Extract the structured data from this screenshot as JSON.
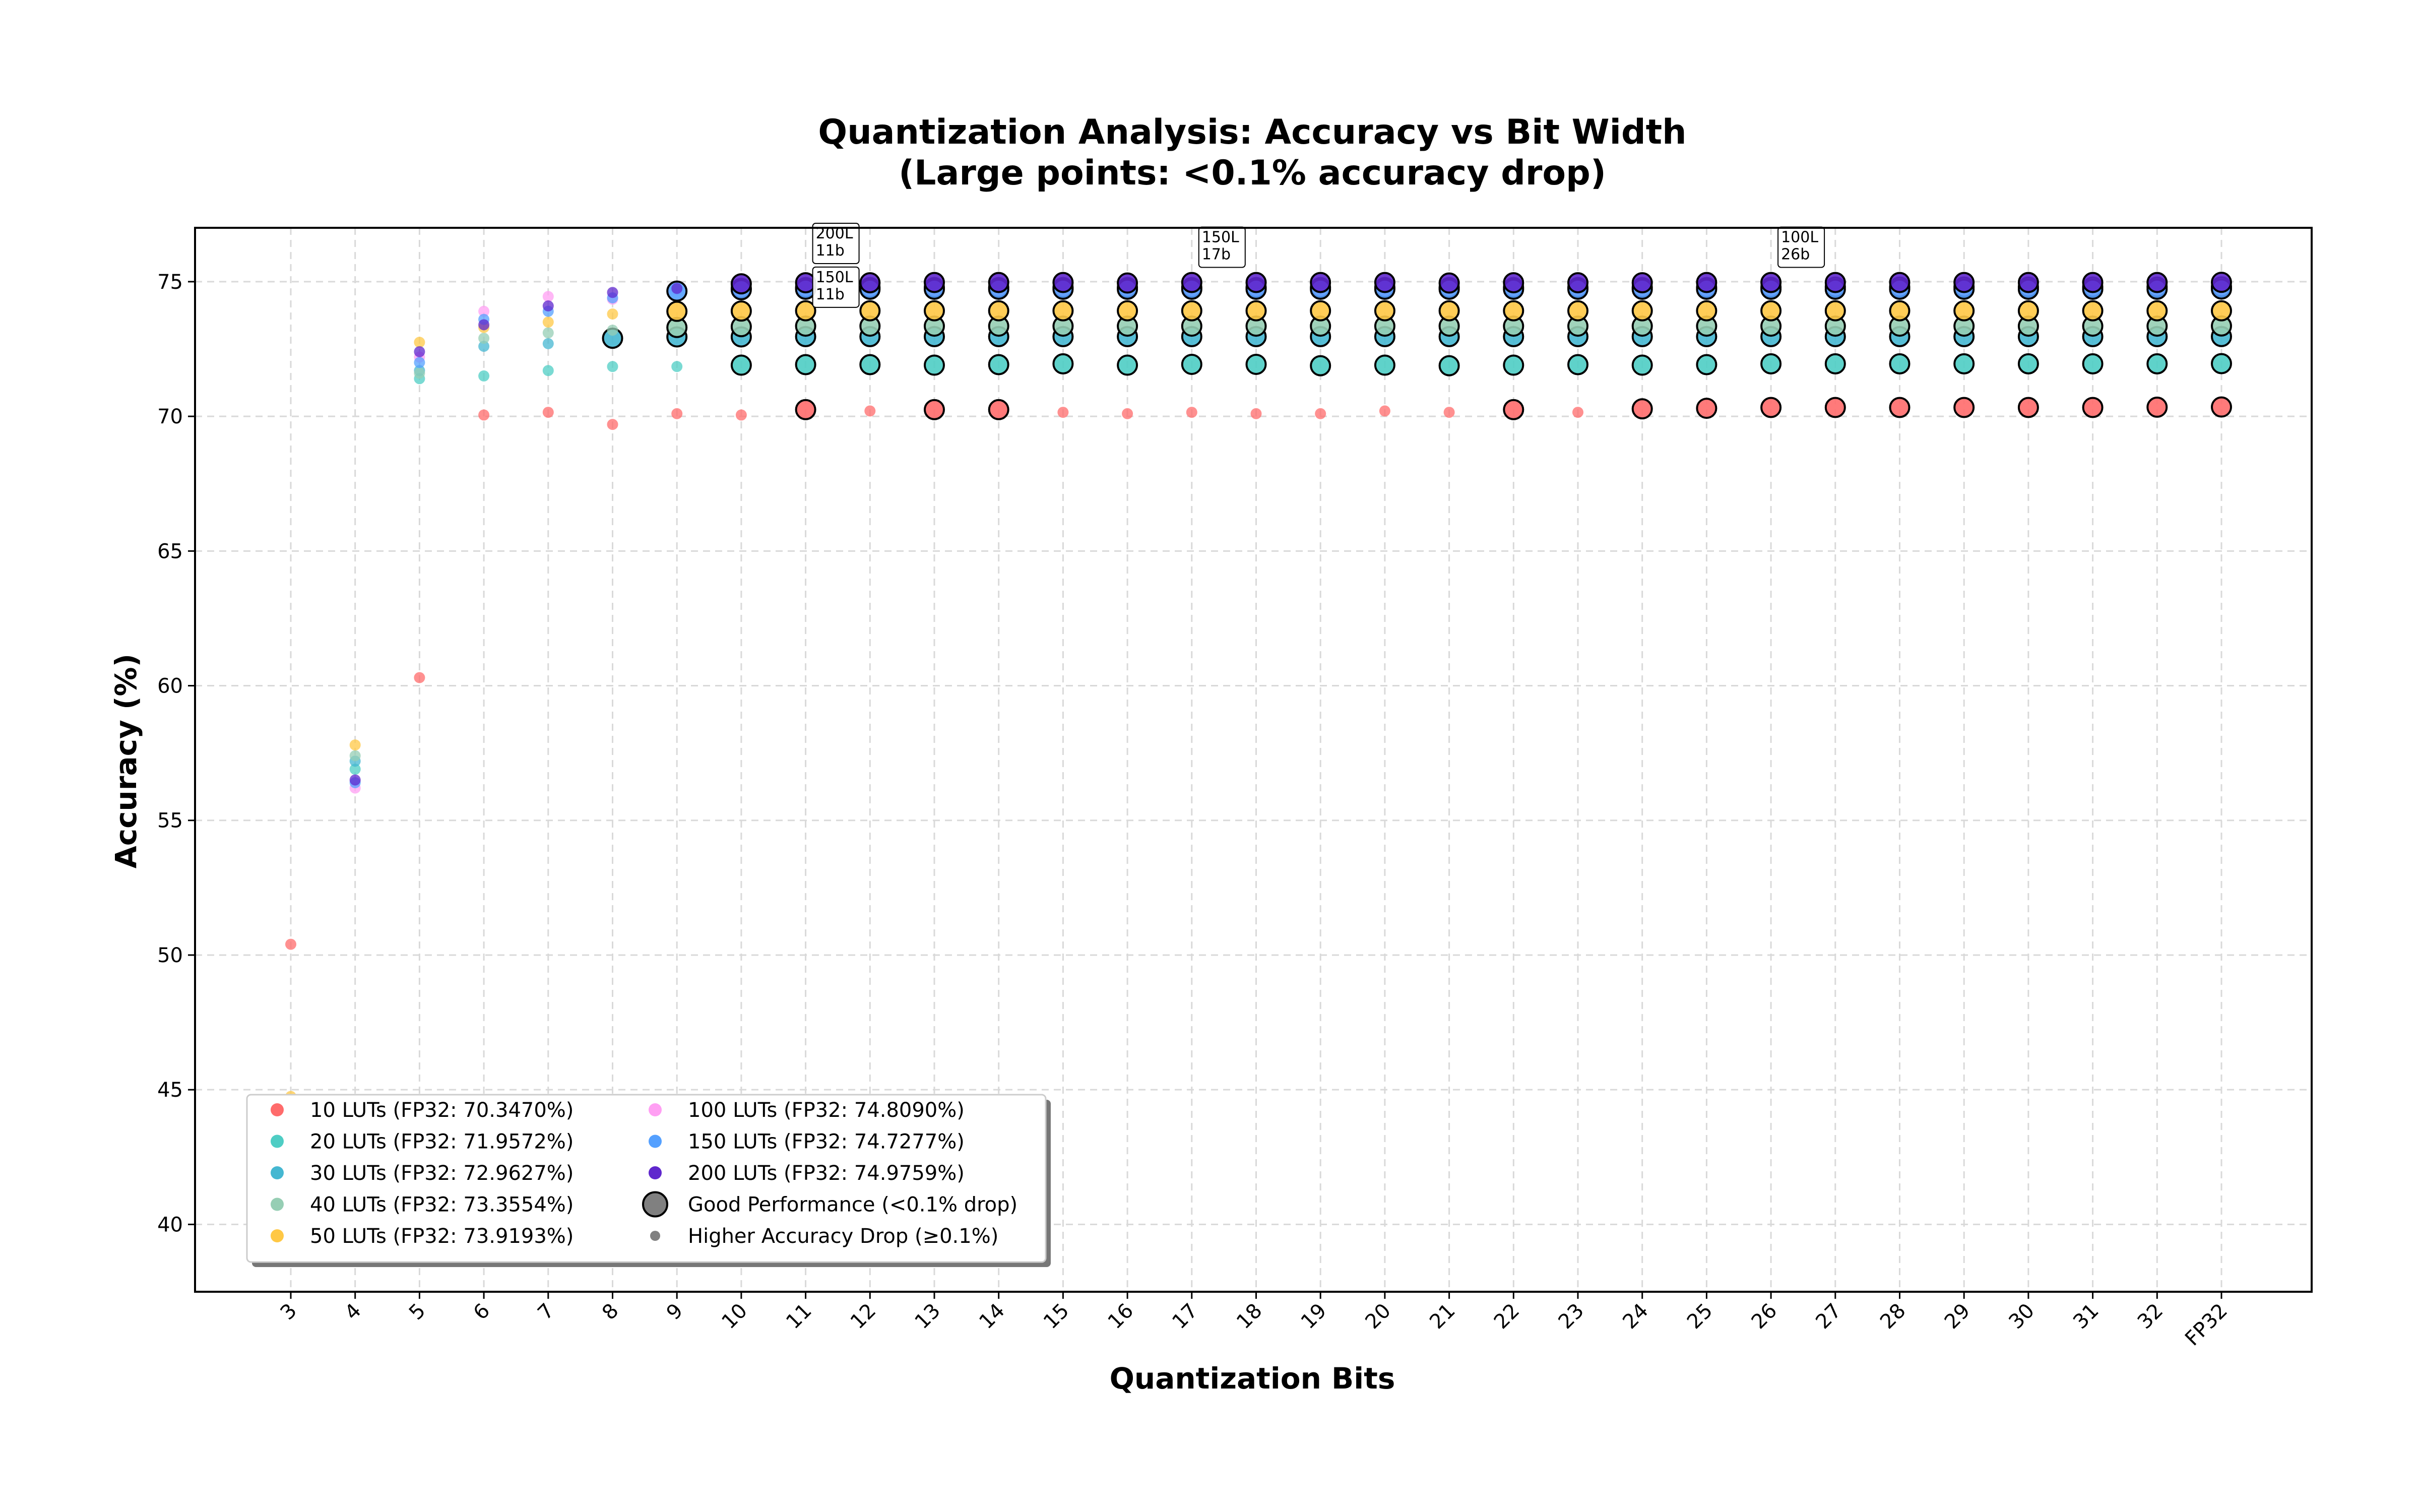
{
  "chart_data": {
    "type": "scatter",
    "title": "Quantization Analysis: Accuracy vs Bit Width",
    "subtitle": "(Large points: <0.1% accuracy drop)",
    "xlabel": "Quantization Bits",
    "ylabel": "Accuracy (%)",
    "categories": [
      "3",
      "4",
      "5",
      "6",
      "7",
      "8",
      "9",
      "10",
      "11",
      "12",
      "13",
      "14",
      "15",
      "16",
      "17",
      "18",
      "19",
      "20",
      "21",
      "22",
      "23",
      "24",
      "25",
      "26",
      "27",
      "28",
      "29",
      "30",
      "31",
      "32",
      "FP32"
    ],
    "ylim": [
      37.5,
      77
    ],
    "yticks": [
      40,
      45,
      50,
      55,
      60,
      65,
      70,
      75
    ],
    "grid": true,
    "legend_position": "lower-left",
    "legend_columns": 2,
    "good_threshold_pct": 0.1,
    "series": [
      {
        "name": "10 LUTs (FP32: 70.3470%)",
        "color": "#ff6b6b",
        "fp32": 70.347,
        "values": [
          50.4,
          null,
          60.3,
          70.05,
          70.15,
          69.7,
          70.1,
          70.05,
          70.25,
          70.2,
          70.25,
          70.25,
          70.15,
          70.1,
          70.15,
          70.1,
          70.1,
          70.2,
          70.15,
          70.25,
          70.15,
          70.28,
          70.3,
          70.33,
          70.33,
          70.33,
          70.33,
          70.33,
          70.33,
          70.34,
          70.347
        ]
      },
      {
        "name": "20 LUTs (FP32: 71.9572%)",
        "color": "#4ecdc4",
        "fp32": 71.9572,
        "values": [
          null,
          56.9,
          71.4,
          71.5,
          71.7,
          71.85,
          71.85,
          71.9,
          71.92,
          71.92,
          71.9,
          71.92,
          71.95,
          71.9,
          71.93,
          71.93,
          71.88,
          71.9,
          71.88,
          71.9,
          71.92,
          71.9,
          71.92,
          71.95,
          71.95,
          71.95,
          71.95,
          71.95,
          71.95,
          71.95,
          71.9572
        ]
      },
      {
        "name": "30 LUTs (FP32: 72.9627%)",
        "color": "#45b7d1",
        "fp32": 72.9627,
        "values": [
          null,
          57.2,
          71.7,
          72.6,
          72.7,
          72.9,
          72.95,
          72.95,
          72.96,
          72.96,
          72.96,
          72.96,
          72.96,
          72.96,
          72.96,
          72.96,
          72.96,
          72.96,
          72.96,
          72.96,
          72.96,
          72.96,
          72.96,
          72.96,
          72.96,
          72.96,
          72.96,
          72.96,
          72.96,
          72.96,
          72.9627
        ]
      },
      {
        "name": "40 LUTs (FP32: 73.3554%)",
        "color": "#96ceb4",
        "fp32": 73.3554,
        "values": [
          null,
          57.4,
          71.6,
          72.9,
          73.1,
          73.2,
          73.3,
          73.33,
          73.35,
          73.35,
          73.35,
          73.35,
          73.35,
          73.35,
          73.35,
          73.35,
          73.35,
          73.35,
          73.35,
          73.35,
          73.35,
          73.35,
          73.35,
          73.35,
          73.35,
          73.35,
          73.35,
          73.35,
          73.35,
          73.35,
          73.3554
        ]
      },
      {
        "name": "50 LUTs (FP32: 73.9193%)",
        "color": "#ffc845",
        "fp32": 73.9193,
        "values": [
          44.75,
          57.8,
          72.75,
          73.3,
          73.5,
          73.8,
          73.9,
          73.91,
          73.92,
          73.92,
          73.92,
          73.92,
          73.92,
          73.92,
          73.92,
          73.92,
          73.92,
          73.92,
          73.92,
          73.92,
          73.92,
          73.92,
          73.92,
          73.92,
          73.92,
          73.92,
          73.92,
          73.92,
          73.92,
          73.92,
          73.9193
        ]
      },
      {
        "name": "100 LUTs (FP32: 74.8090%)",
        "color": "#ff9ff3",
        "fp32": 74.809,
        "values": [
          null,
          56.2,
          72.2,
          73.9,
          74.45,
          74.35,
          74.7,
          74.75,
          74.78,
          74.78,
          74.78,
          74.78,
          74.78,
          74.78,
          74.78,
          74.78,
          74.78,
          74.78,
          74.78,
          74.78,
          74.78,
          74.78,
          74.78,
          74.79,
          74.8,
          74.8,
          74.8,
          74.8,
          74.8,
          74.8,
          74.809
        ]
      },
      {
        "name": "150 LUTs (FP32: 74.7277%)",
        "color": "#54a0ff",
        "fp32": 74.7277,
        "values": [
          null,
          56.4,
          72.0,
          73.6,
          73.9,
          74.4,
          74.65,
          74.7,
          74.72,
          74.72,
          74.72,
          74.72,
          74.72,
          74.72,
          74.72,
          74.72,
          74.72,
          74.72,
          74.72,
          74.72,
          74.72,
          74.72,
          74.72,
          74.72,
          74.72,
          74.72,
          74.72,
          74.72,
          74.72,
          74.72,
          74.7277
        ]
      },
      {
        "name": "200 LUTs (FP32: 74.9759%)",
        "color": "#5f27cd",
        "fp32": 74.9759,
        "values": [
          null,
          56.5,
          72.4,
          73.4,
          74.1,
          74.6,
          74.75,
          74.92,
          74.96,
          74.96,
          74.97,
          74.97,
          74.97,
          74.95,
          74.97,
          74.97,
          74.97,
          74.97,
          74.95,
          74.96,
          74.96,
          74.96,
          74.97,
          74.97,
          74.97,
          74.97,
          74.97,
          74.97,
          74.97,
          74.97,
          74.9759
        ]
      }
    ],
    "legend_extra": [
      {
        "label": "Good Performance (<0.1% drop)",
        "marker": "large"
      },
      {
        "label": "Higher Accuracy Drop (≥0.1%)",
        "marker": "small"
      }
    ],
    "annotations": [
      {
        "x": "11",
        "y": 74.96,
        "text": "200L\n11b"
      },
      {
        "x": "11",
        "y": 74.72,
        "text": "150L\n11b"
      },
      {
        "x": "17",
        "y": 74.97,
        "text": "150L\n17b"
      },
      {
        "x": "26",
        "y": 74.97,
        "text": "100L\n26b"
      }
    ]
  }
}
